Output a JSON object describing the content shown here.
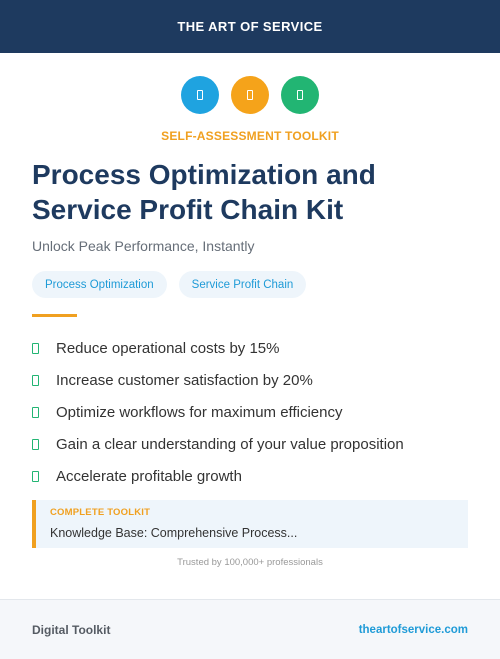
{
  "header": {
    "brand": "THE ART OF SERVICE"
  },
  "icons": [
    {
      "name": "document-icon",
      "color": "#1fa3e0"
    },
    {
      "name": "document-icon",
      "color": "#f5a31a"
    },
    {
      "name": "document-icon",
      "color": "#22b573"
    }
  ],
  "kicker": "SELF-ASSESSMENT TOOLKIT",
  "title": "Process Optimization and Service Profit Chain Kit",
  "subtitle": "Unlock Peak Performance, Instantly",
  "tags": [
    "Process Optimization",
    "Service Profit Chain"
  ],
  "benefits": [
    "Reduce operational costs by 15%",
    "Increase customer satisfaction by 20%",
    "Optimize workflows for maximum efficiency",
    "Gain a clear understanding of your value proposition",
    "Accelerate profitable growth"
  ],
  "callout": {
    "label": "COMPLETE TOOLKIT",
    "value": "Knowledge Base: Comprehensive Process..."
  },
  "trust": "Trusted by 100,000+ professionals",
  "footer": {
    "left": "Digital Toolkit",
    "right": "theartofservice.com"
  },
  "colors": {
    "navy": "#1e3a5f",
    "accent": "#f0a020",
    "blue": "#1f9bd7",
    "green": "#22b573"
  }
}
